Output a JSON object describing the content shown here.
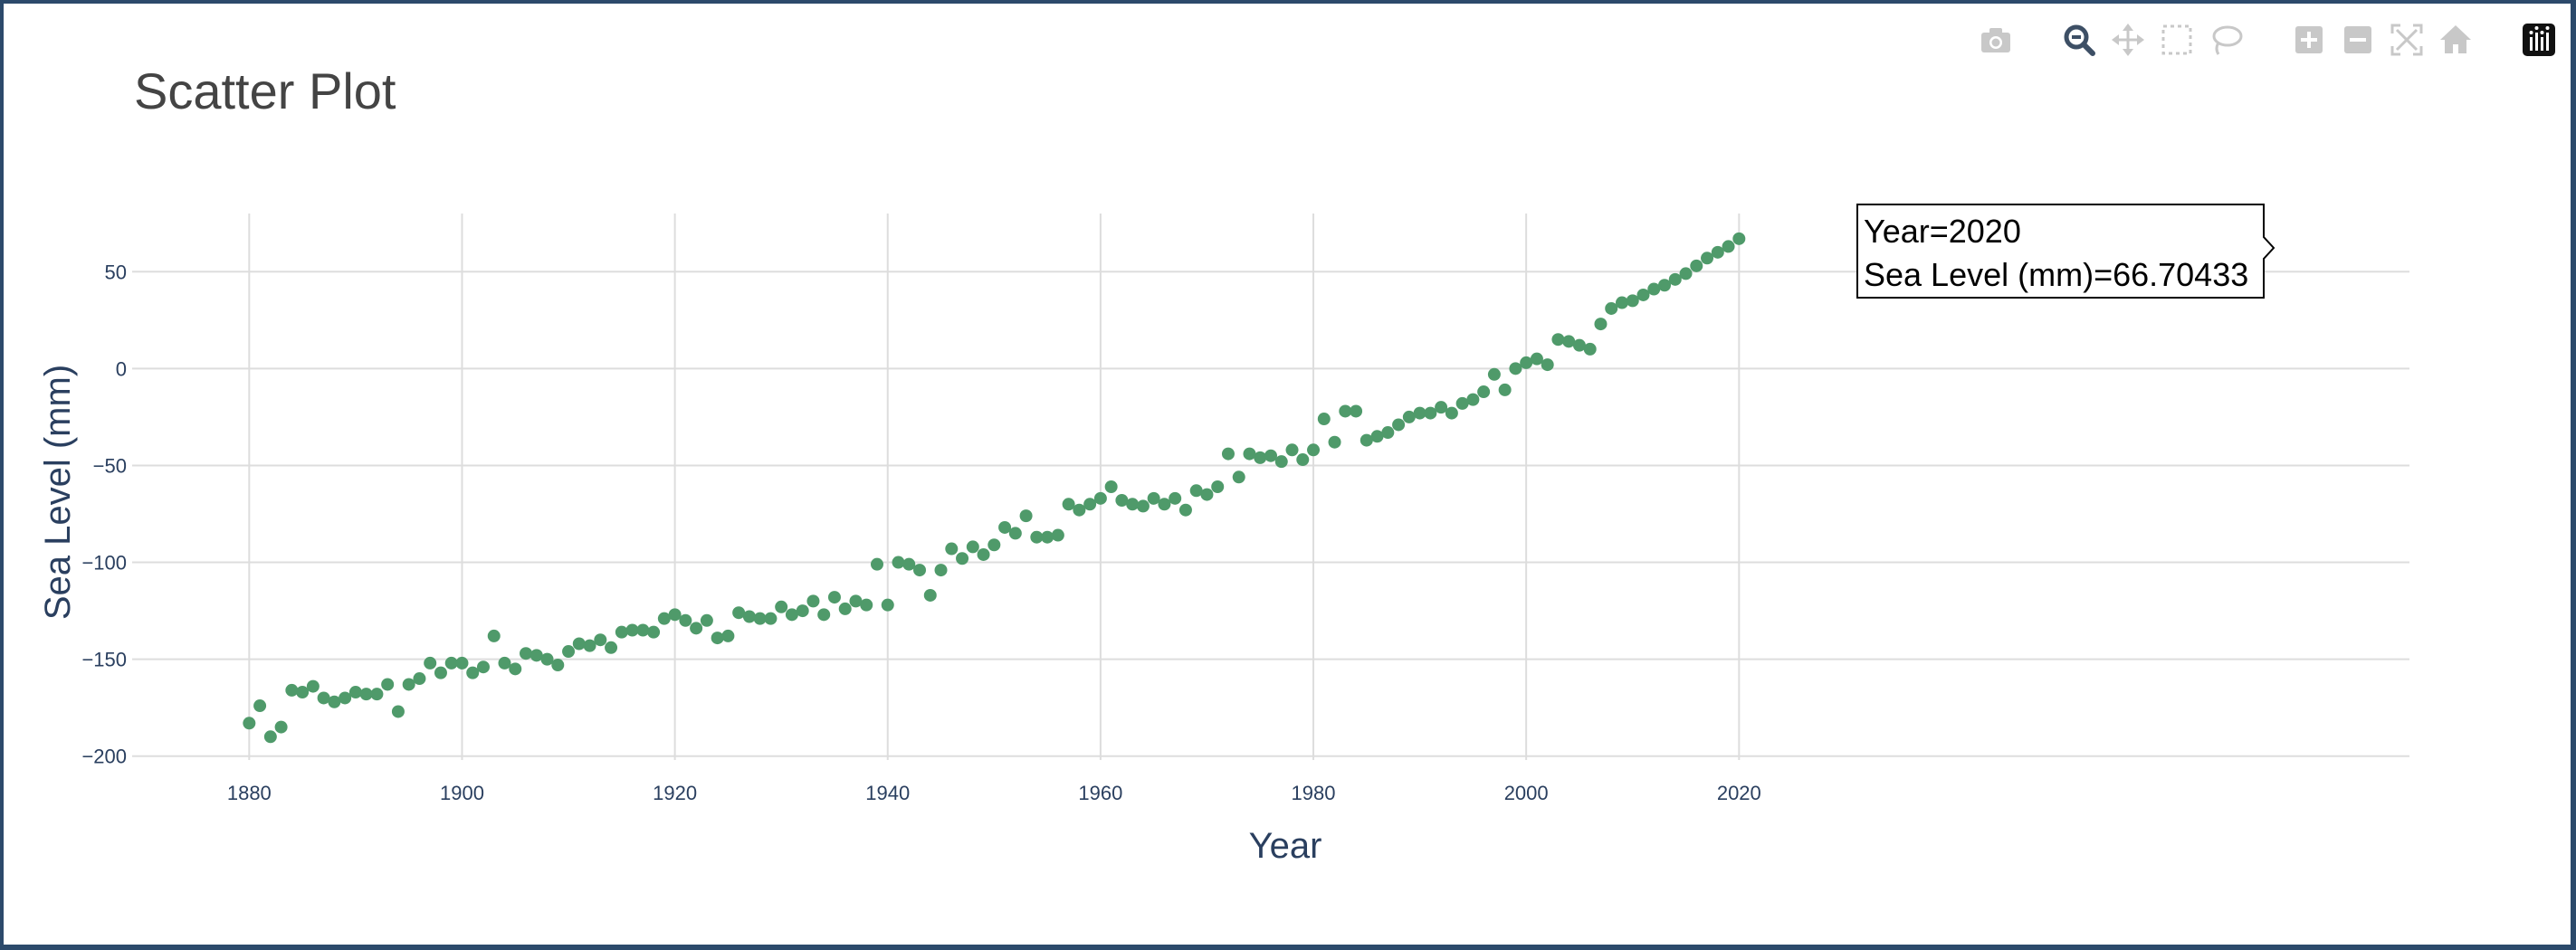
{
  "modebar": {
    "buttons": [
      "camera-icon",
      "zoom-icon",
      "pan-icon",
      "box-select-icon",
      "lasso-select-icon",
      "zoom-in-icon",
      "zoom-out-icon",
      "autoscale-icon",
      "reset-axes-icon",
      "plotly-logo-icon"
    ],
    "active": "zoom-icon"
  },
  "colors": {
    "marker": "#4f9a6a",
    "grid": "#dddddd",
    "text": "#2a3f5f",
    "title": "#444444",
    "frame": "#2c4a6b"
  },
  "hover": {
    "line1": "Year=2020",
    "line2": "Sea Level (mm)=66.70433"
  },
  "chart_data": {
    "type": "scatter",
    "title": "Scatter Plot",
    "xlabel": "Year",
    "ylabel": "Sea Level (mm)",
    "xlim": [
      1869,
      2083
    ],
    "ylim": [
      -202,
      80
    ],
    "xticks": [
      1880,
      1900,
      1920,
      1940,
      1960,
      1980,
      2000,
      2020
    ],
    "xtick_labels": [
      "1880",
      "1900",
      "1920",
      "1940",
      "1960",
      "1980",
      "2000",
      "2020"
    ],
    "yticks": [
      -200,
      -150,
      -100,
      -50,
      0,
      50
    ],
    "ytick_labels": [
      "−200",
      "−150",
      "−100",
      "−50",
      "0",
      "50"
    ],
    "grid": true,
    "x": [
      1880,
      1881,
      1882,
      1883,
      1884,
      1885,
      1886,
      1887,
      1888,
      1889,
      1890,
      1891,
      1892,
      1893,
      1894,
      1895,
      1896,
      1897,
      1898,
      1899,
      1900,
      1901,
      1902,
      1903,
      1904,
      1905,
      1906,
      1907,
      1908,
      1909,
      1910,
      1911,
      1912,
      1913,
      1914,
      1915,
      1916,
      1917,
      1918,
      1919,
      1920,
      1921,
      1922,
      1923,
      1924,
      1925,
      1926,
      1927,
      1928,
      1929,
      1930,
      1931,
      1932,
      1933,
      1934,
      1935,
      1936,
      1937,
      1938,
      1939,
      1940,
      1941,
      1942,
      1943,
      1944,
      1945,
      1946,
      1947,
      1948,
      1949,
      1950,
      1951,
      1952,
      1953,
      1954,
      1955,
      1956,
      1957,
      1958,
      1959,
      1960,
      1961,
      1962,
      1963,
      1964,
      1965,
      1966,
      1967,
      1968,
      1969,
      1970,
      1971,
      1972,
      1973,
      1974,
      1975,
      1976,
      1977,
      1978,
      1979,
      1980,
      1981,
      1982,
      1983,
      1984,
      1985,
      1986,
      1987,
      1988,
      1989,
      1990,
      1991,
      1992,
      1993,
      1994,
      1995,
      1996,
      1997,
      1998,
      1999,
      2000,
      2001,
      2002,
      2003,
      2004,
      2005,
      2006,
      2007,
      2008,
      2009,
      2010,
      2011,
      2012,
      2013,
      2014,
      2015,
      2016,
      2017,
      2018,
      2019,
      2020
    ],
    "y": [
      -183,
      -174,
      -190,
      -185,
      -166,
      -167,
      -164,
      -170,
      -172,
      -170,
      -167,
      -168,
      -168,
      -163,
      -177,
      -163,
      -160,
      -152,
      -157,
      -152,
      -152,
      -157,
      -154,
      -138,
      -152,
      -155,
      -147,
      -148,
      -150,
      -153,
      -146,
      -142,
      -143,
      -140,
      -144,
      -136,
      -135,
      -135,
      -136,
      -129,
      -127,
      -130,
      -134,
      -130,
      -139,
      -138,
      -126,
      -128,
      -129,
      -129,
      -123,
      -127,
      -125,
      -120,
      -127,
      -118,
      -124,
      -120,
      -122,
      -101,
      -122,
      -100,
      -101,
      -104,
      -117,
      -104,
      -93,
      -98,
      -92,
      -96,
      -91,
      -82,
      -85,
      -76,
      -87,
      -87,
      -86,
      -70,
      -73,
      -70,
      -67,
      -61,
      -68,
      -70,
      -71,
      -67,
      -70,
      -67,
      -73,
      -63,
      -65,
      -61,
      -44,
      -56,
      -44,
      -46,
      -45,
      -48,
      -42,
      -47,
      -42,
      -26,
      -38,
      -22,
      -22,
      -37,
      -35,
      -33,
      -29,
      -25,
      -23,
      -23,
      -20,
      -23,
      -18,
      -16,
      -12,
      -3,
      -11,
      0,
      3,
      5,
      2,
      15,
      14,
      12,
      10,
      23,
      31,
      34,
      35,
      38,
      41,
      43,
      46,
      49,
      53,
      57,
      60,
      63,
      67
    ]
  }
}
